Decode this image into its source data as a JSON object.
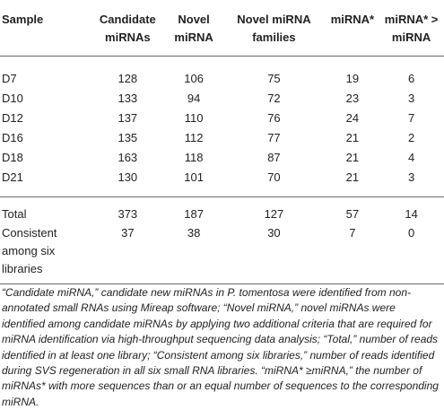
{
  "table": {
    "headers": [
      "Sample",
      "Candidate miRNAs",
      "Novel miRNA",
      "Novel miRNA families",
      "miRNA*",
      "miRNA* > miRNA"
    ],
    "rows": [
      [
        "D7",
        "128",
        "106",
        "75",
        "19",
        "6"
      ],
      [
        "D10",
        "133",
        "94",
        "72",
        "23",
        "3"
      ],
      [
        "D12",
        "137",
        "110",
        "76",
        "24",
        "7"
      ],
      [
        "D16",
        "135",
        "112",
        "77",
        "21",
        "2"
      ],
      [
        "D18",
        "163",
        "118",
        "87",
        "21",
        "4"
      ],
      [
        "D21",
        "130",
        "101",
        "70",
        "21",
        "3"
      ]
    ],
    "total_row": [
      "Total",
      "373",
      "187",
      "127",
      "57",
      "14"
    ],
    "consistent_row": [
      "Consistent among six libraries",
      "37",
      "38",
      "30",
      "7",
      "0"
    ]
  },
  "footnote": "“Candidate miRNA,” candidate new miRNAs in P. tomentosa were identified from non-annotated small RNAs using Mireap software; “Novel miRNA,” novel miRNAs were identified among candidate miRNAs by applying two additional criteria that are required for miRNA identification via high-throughput sequencing data analysis; “Total,” number of reads identified in at least one library; “Consistent among six libraries,” number of reads identified during SVS regeneration in all six small RNA libraries. “miRNA* ≥miRNA,” the number of miRNAs* with more sequences than or an equal number of sequences to the corresponding miRNA."
}
